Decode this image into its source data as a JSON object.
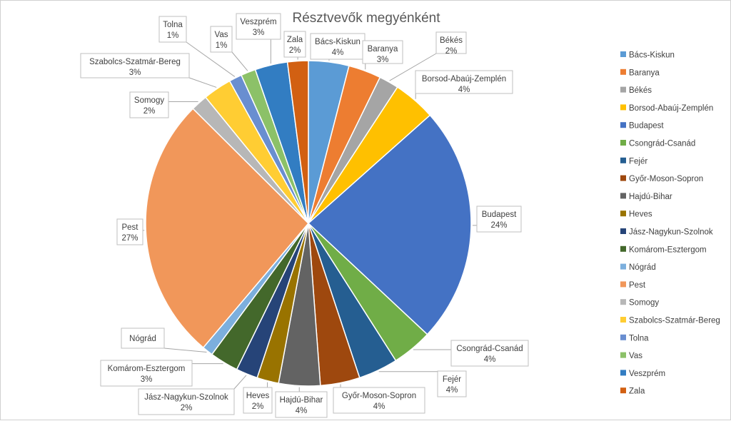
{
  "chart_data": {
    "type": "pie",
    "title": "Résztvevők megyénként",
    "categories": [
      "Bács-Kiskun",
      "Baranya",
      "Békés",
      "Borsod-Abaúj-Zemplén",
      "Budapest",
      "Csongrád-Csanád",
      "Fejér",
      "Győr-Moson-Sopron",
      "Hajdú-Bihar",
      "Heves",
      "Jász-Nagykun-Szolnok",
      "Komárom-Esztergom",
      "Nógrád",
      "Pest",
      "Somogy",
      "Szabolcs-Szatmár-Bereg",
      "Tolna",
      "Vas",
      "Veszprém",
      "Zala"
    ],
    "values": [
      4.1,
      3.3,
      2.0,
      4.3,
      24.0,
      4.1,
      4.0,
      4.0,
      4.2,
      2.2,
      2.2,
      2.9,
      1.1,
      26.8,
      1.7,
      2.9,
      1.3,
      1.5,
      3.3,
      2.1
    ],
    "data_labels": [
      "4%",
      "3%",
      "2%",
      "4%",
      "24%",
      "4%",
      "4%",
      "4%",
      "4%",
      "2%",
      "2%",
      "3%",
      "",
      "27%",
      "2%",
      "3%",
      "1%",
      "1%",
      "3%",
      "2%"
    ],
    "colors": [
      "#5B9BD5",
      "#ED7D31",
      "#A5A5A5",
      "#FFC000",
      "#4472C4",
      "#70AD47",
      "#255E91",
      "#9E480E",
      "#636363",
      "#997300",
      "#264478",
      "#43682B",
      "#7CAFDD",
      "#F1975A",
      "#B7B7B7",
      "#FFCD33",
      "#698ED0",
      "#8CC168",
      "#327DC2",
      "#D26012"
    ],
    "legend_position": "right"
  }
}
